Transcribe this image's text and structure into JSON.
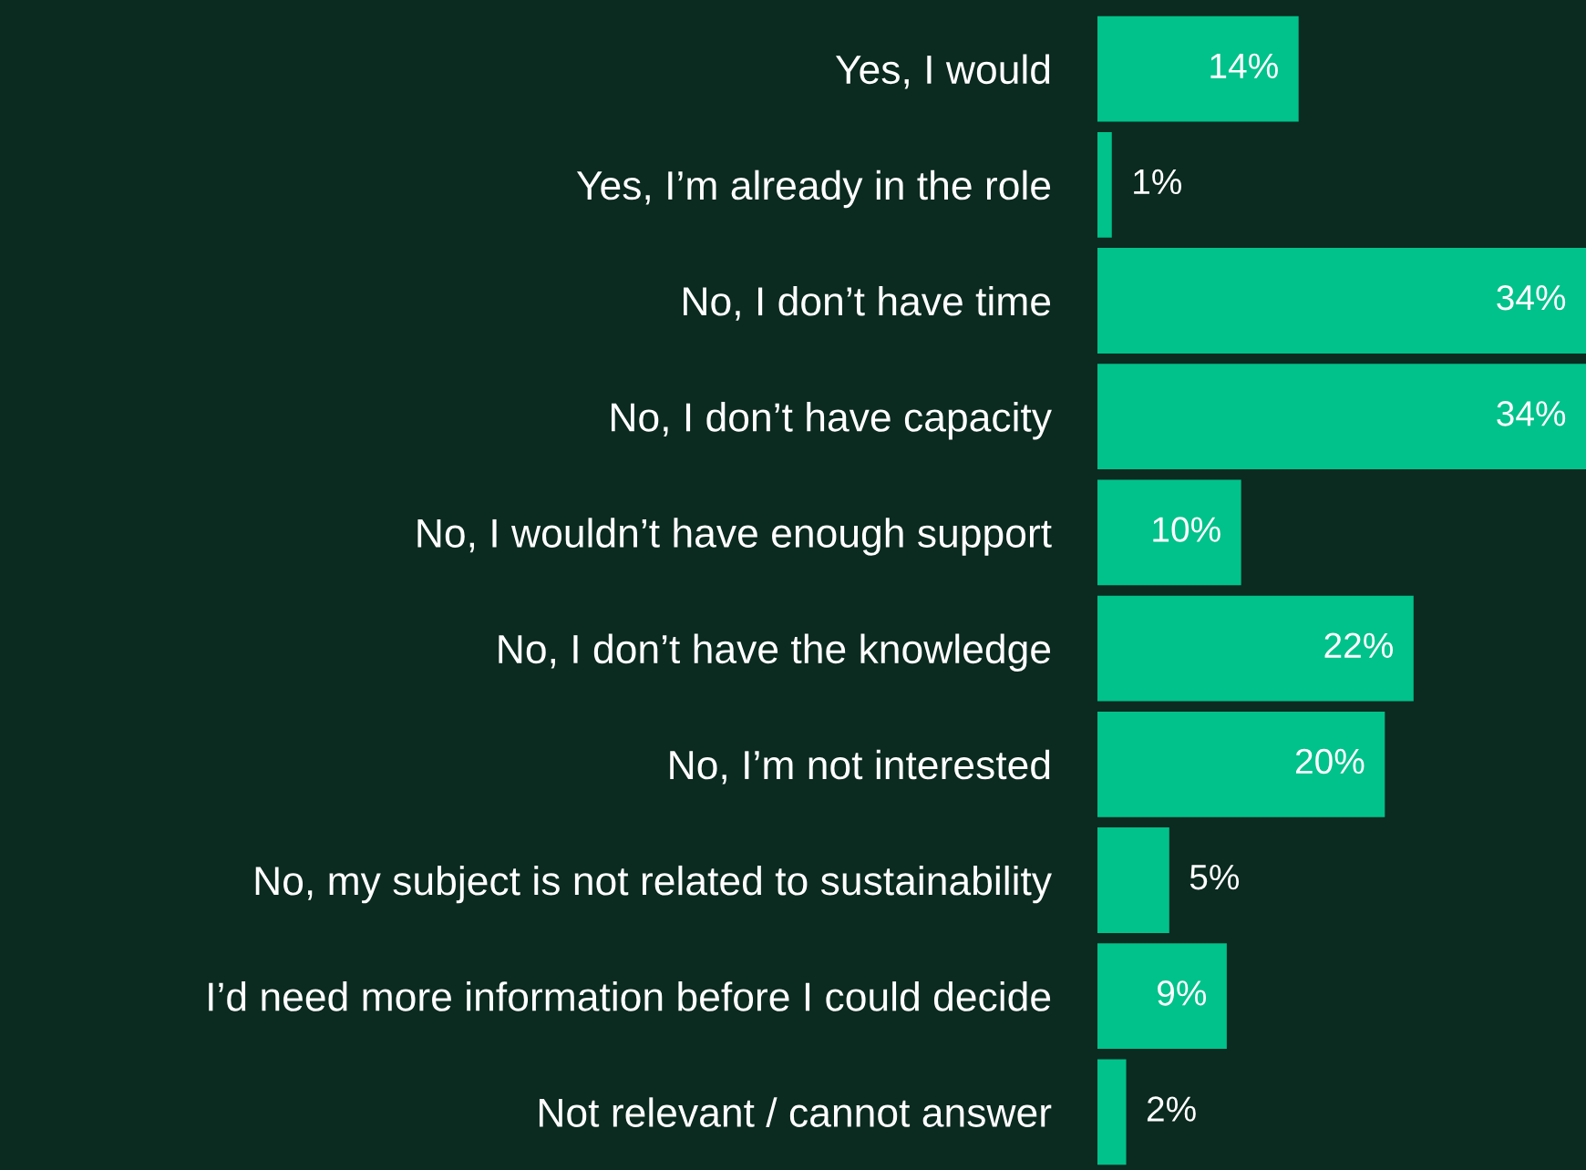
{
  "chart_data": {
    "type": "bar",
    "orientation": "horizontal",
    "categories": [
      "Yes, I would",
      "Yes, I’m already in the role",
      "No, I don’t have time",
      "No, I don’t have capacity",
      "No, I wouldn’t have enough support",
      "No, I don’t have the knowledge",
      "No, I’m not interested",
      "No, my subject is not related to sustainability",
      "I’d need more information before I could decide",
      "Not relevant / cannot answer"
    ],
    "values": [
      14,
      1,
      34,
      34,
      10,
      22,
      20,
      5,
      9,
      2
    ],
    "value_labels": [
      "14%",
      "1%",
      "34%",
      "34%",
      "10%",
      "22%",
      "20%",
      "5%",
      "9%",
      "2%"
    ],
    "color": "#00c28a",
    "grid": false,
    "legend": false
  }
}
